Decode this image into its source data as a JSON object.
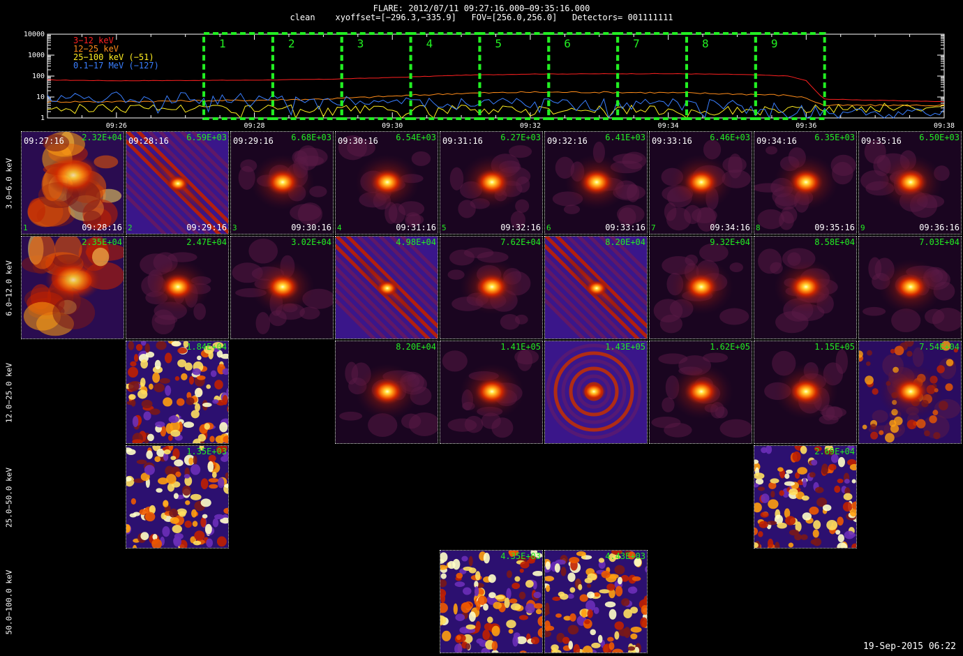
{
  "header": {
    "line1": "FLARE: 2012/07/11 09:27:16.000–09:35:16.000",
    "line2": "clean    xyoffset=[−296.3,−335.9]   FOV=[256.0,256.0]   Detectors= 001111111"
  },
  "chart_data": {
    "type": "line",
    "yscale": "log",
    "ylim": [
      1,
      10000
    ],
    "y_ticks": [
      "1",
      "10",
      "100",
      "1000",
      "10000"
    ],
    "x_ticks": [
      "09:26",
      "09:28",
      "09:30",
      "09:32",
      "09:34",
      "09:36",
      "09:38"
    ],
    "xlim": [
      "09:25:00",
      "09:38:00"
    ],
    "series": [
      {
        "name": "3−12 keV",
        "color": "#ff2020",
        "times": [
          "09:25:00",
          "09:26:00",
          "09:27:00",
          "09:28:00",
          "09:29:00",
          "09:30:00",
          "09:31:00",
          "09:32:00",
          "09:33:00",
          "09:34:00",
          "09:35:00",
          "09:35:45",
          "09:36:00",
          "09:36:15",
          "09:37:00",
          "09:38:00"
        ],
        "values": [
          65,
          60,
          62,
          64,
          70,
          85,
          110,
          125,
          128,
          130,
          120,
          100,
          60,
          8,
          7,
          6
        ]
      },
      {
        "name": "12−25 keV",
        "color": "#ff8c1a",
        "times": [
          "09:25:00",
          "09:26:00",
          "09:27:00",
          "09:28:00",
          "09:29:00",
          "09:30:00",
          "09:31:00",
          "09:32:00",
          "09:33:00",
          "09:34:00",
          "09:35:00",
          "09:35:45",
          "09:36:00",
          "09:36:15",
          "09:37:00",
          "09:38:00"
        ],
        "values": [
          6,
          6,
          6.5,
          7,
          8,
          11,
          15,
          17,
          17,
          16,
          14,
          12,
          9,
          4,
          4,
          4
        ]
      },
      {
        "name": "25−100 keV (−51)",
        "color": "#ffee22",
        "times": [
          "09:25:00",
          "09:26:00",
          "09:27:00",
          "09:28:00",
          "09:29:00",
          "09:30:00",
          "09:31:00",
          "09:32:00",
          "09:33:00",
          "09:34:00",
          "09:35:00",
          "09:36:00",
          "09:37:00",
          "09:38:00"
        ],
        "values": [
          3,
          3,
          3,
          2.8,
          2.5,
          2.3,
          2.5,
          2.5,
          2.5,
          2.3,
          2.2,
          2.5,
          3,
          3
        ]
      },
      {
        "name": "0.1−17 MeV (−127)",
        "color": "#3a7fff",
        "times": [
          "09:25:00",
          "09:26:00",
          "09:27:00",
          "09:28:00",
          "09:29:00",
          "09:30:00",
          "09:31:00",
          "09:32:00",
          "09:33:00",
          "09:34:00",
          "09:35:00",
          "09:36:00",
          "09:37:00",
          "09:38:00"
        ],
        "values": [
          11,
          10,
          9,
          8,
          7,
          6,
          5.5,
          5,
          4.8,
          4.5,
          4,
          2,
          1.5,
          1.5
        ]
      }
    ],
    "intervals": [
      {
        "label": "1",
        "start": "09:27:16",
        "end": "09:28:16"
      },
      {
        "label": "2",
        "start": "09:28:16",
        "end": "09:29:16"
      },
      {
        "label": "3",
        "start": "09:29:16",
        "end": "09:30:16"
      },
      {
        "label": "4",
        "start": "09:30:16",
        "end": "09:31:16"
      },
      {
        "label": "5",
        "start": "09:31:16",
        "end": "09:32:16"
      },
      {
        "label": "6",
        "start": "09:32:16",
        "end": "09:33:16"
      },
      {
        "label": "7",
        "start": "09:33:16",
        "end": "09:34:16"
      },
      {
        "label": "8",
        "start": "09:34:16",
        "end": "09:35:16"
      },
      {
        "label": "9",
        "start": "09:35:16",
        "end": "09:36:16"
      }
    ],
    "interval_color": "#22ee22"
  },
  "image_grid": {
    "row_labels": [
      "3.0−6.0 keV",
      "6.0−12.0 keV",
      "12.0−25.0 keV",
      "25.0−50.0 keV",
      "50.0−100.0 keV"
    ],
    "start_times": [
      "09:27:16",
      "09:28:16",
      "09:29:16",
      "09:30:16",
      "09:31:16",
      "09:32:16",
      "09:33:16",
      "09:34:16",
      "09:35:16"
    ],
    "end_times": [
      "09:28:16",
      "09:29:16",
      "09:30:16",
      "09:31:16",
      "09:32:16",
      "09:33:16",
      "09:34:16",
      "09:35:16",
      "09:36:16"
    ],
    "interval_numbers": [
      "1",
      "2",
      "3",
      "4",
      "5",
      "6",
      "7",
      "8",
      "9"
    ],
    "cells": [
      {
        "row": 0,
        "col": 0,
        "max": "2.32E+04",
        "kind": "blob"
      },
      {
        "row": 0,
        "col": 1,
        "max": "6.59E+03",
        "kind": "streak"
      },
      {
        "row": 0,
        "col": 2,
        "max": "6.68E+03",
        "kind": "source"
      },
      {
        "row": 0,
        "col": 3,
        "max": "6.54E+03",
        "kind": "source"
      },
      {
        "row": 0,
        "col": 4,
        "max": "6.27E+03",
        "kind": "source"
      },
      {
        "row": 0,
        "col": 5,
        "max": "6.41E+03",
        "kind": "source"
      },
      {
        "row": 0,
        "col": 6,
        "max": "6.46E+03",
        "kind": "source"
      },
      {
        "row": 0,
        "col": 7,
        "max": "6.35E+03",
        "kind": "source"
      },
      {
        "row": 0,
        "col": 8,
        "max": "6.50E+03",
        "kind": "source"
      },
      {
        "row": 1,
        "col": 0,
        "max": "2.35E+04",
        "kind": "blob"
      },
      {
        "row": 1,
        "col": 1,
        "max": "2.47E+04",
        "kind": "source"
      },
      {
        "row": 1,
        "col": 2,
        "max": "3.02E+04",
        "kind": "source"
      },
      {
        "row": 1,
        "col": 3,
        "max": "4.98E+04",
        "kind": "streak"
      },
      {
        "row": 1,
        "col": 4,
        "max": "7.62E+04",
        "kind": "source"
      },
      {
        "row": 1,
        "col": 5,
        "max": "8.20E+04",
        "kind": "streak"
      },
      {
        "row": 1,
        "col": 6,
        "max": "9.32E+04",
        "kind": "source"
      },
      {
        "row": 1,
        "col": 7,
        "max": "8.58E+04",
        "kind": "source"
      },
      {
        "row": 1,
        "col": 8,
        "max": "7.03E+04",
        "kind": "source"
      },
      {
        "row": 2,
        "col": 1,
        "max": "1.84E+04",
        "kind": "noise"
      },
      {
        "row": 2,
        "col": 3,
        "max": "8.20E+04",
        "kind": "source"
      },
      {
        "row": 2,
        "col": 4,
        "max": "1.41E+05",
        "kind": "source"
      },
      {
        "row": 2,
        "col": 5,
        "max": "1.43E+05",
        "kind": "rings"
      },
      {
        "row": 2,
        "col": 6,
        "max": "1.62E+05",
        "kind": "source"
      },
      {
        "row": 2,
        "col": 7,
        "max": "1.15E+05",
        "kind": "source"
      },
      {
        "row": 2,
        "col": 8,
        "max": "7.54E+04",
        "kind": "noisysrc"
      },
      {
        "row": 3,
        "col": 1,
        "max": "1.35E+03",
        "kind": "noise"
      },
      {
        "row": 3,
        "col": 7,
        "max": "2.69E+04",
        "kind": "noise"
      },
      {
        "row": 4,
        "col": 4,
        "max": "4.35E+03",
        "kind": "noise"
      },
      {
        "row": 4,
        "col": 5,
        "max": "4.43E+03",
        "kind": "noise"
      }
    ]
  },
  "footer": {
    "date": "19-Sep-2015 06:22"
  }
}
